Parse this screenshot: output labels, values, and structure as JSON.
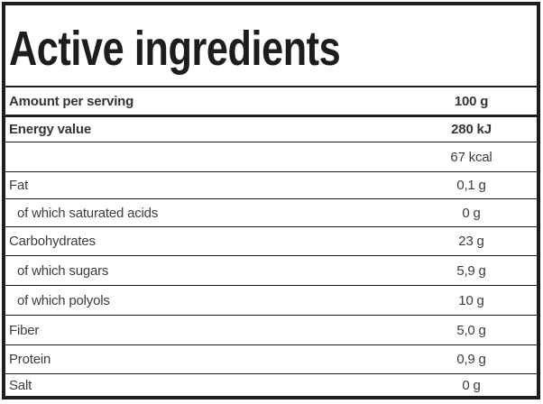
{
  "label": {
    "title": "Active ingredients",
    "columns": {
      "label": "Amount per serving",
      "value": "100 g"
    },
    "rows": [
      {
        "id": "energy-kj",
        "label": "Energy value",
        "value": "280 kJ",
        "bold": true,
        "indent": false
      },
      {
        "id": "energy-kcal",
        "label": "",
        "value": "67 kcal",
        "bold": false,
        "indent": false
      },
      {
        "id": "fat",
        "label": "Fat",
        "value": "0,1 g",
        "bold": false,
        "indent": false
      },
      {
        "id": "saturated-acids",
        "label": "of which saturated acids",
        "value": "0 g",
        "bold": false,
        "indent": true
      },
      {
        "id": "carbohydrates",
        "label": "Carbohydrates",
        "value": "23 g",
        "bold": false,
        "indent": false
      },
      {
        "id": "sugars",
        "label": "of which sugars",
        "value": "5,9 g",
        "bold": false,
        "indent": true
      },
      {
        "id": "polyols",
        "label": "of which polyols",
        "value": "10 g",
        "bold": false,
        "indent": true
      },
      {
        "id": "fiber",
        "label": "Fiber",
        "value": "5,0 g",
        "bold": false,
        "indent": false
      },
      {
        "id": "protein",
        "label": "Protein",
        "value": "0,9 g",
        "bold": false,
        "indent": false
      },
      {
        "id": "salt",
        "label": "Salt",
        "value": "0 g",
        "bold": false,
        "indent": false
      }
    ],
    "colors": {
      "border": "#1d1d1b",
      "title": "#1d1d1b",
      "text": "#3c3c3b"
    }
  }
}
